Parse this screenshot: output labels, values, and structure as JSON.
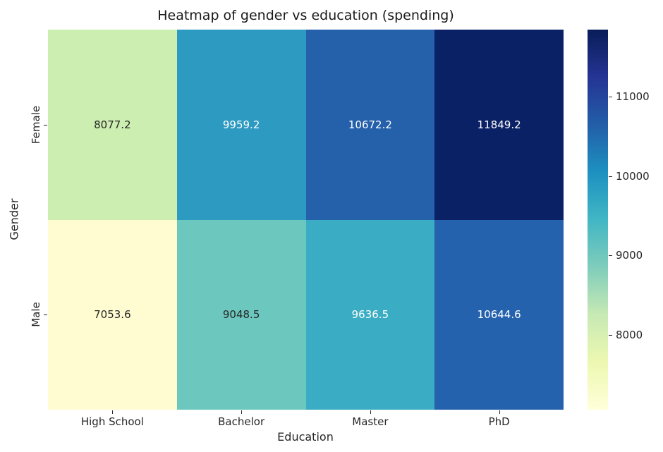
{
  "figure": {
    "background": "#ffffff",
    "text_color": "#262626"
  },
  "chart_data": {
    "type": "heatmap",
    "title": "Heatmap of gender vs education (spending)",
    "xlabel": "Education",
    "ylabel": "Gender",
    "x_categories": [
      "High School",
      "Bachelor",
      "Master",
      "PhD"
    ],
    "y_categories": [
      "Female",
      "Male"
    ],
    "values": [
      [
        8077.2,
        9959.2,
        10672.2,
        11849.2
      ],
      [
        7053.6,
        9048.5,
        9636.5,
        10644.6
      ]
    ],
    "cell_colors": [
      [
        "#cdeeb1",
        "#2d9ac2",
        "#2560ab",
        "#0b2166"
      ],
      [
        "#fffcd2",
        "#6cc8be",
        "#3aacc3",
        "#2562ad"
      ]
    ],
    "cell_text_colors": [
      [
        "#262626",
        "#ffffff",
        "#ffffff",
        "#ffffff"
      ],
      [
        "#262626",
        "#262626",
        "#ffffff",
        "#ffffff"
      ]
    ],
    "vmin": 7053.6,
    "vmax": 11849.2,
    "colormap": "YlGnBu",
    "colormap_stops": [
      "#ffffd9",
      "#edf8b1",
      "#c7e9b4",
      "#7fcdbb",
      "#41b6c4",
      "#1d91c0",
      "#225ea8",
      "#253494",
      "#081d58"
    ],
    "colorbar_ticks": [
      8000,
      9000,
      10000,
      11000
    ],
    "grid": false,
    "legend_position": "right-colorbar"
  }
}
